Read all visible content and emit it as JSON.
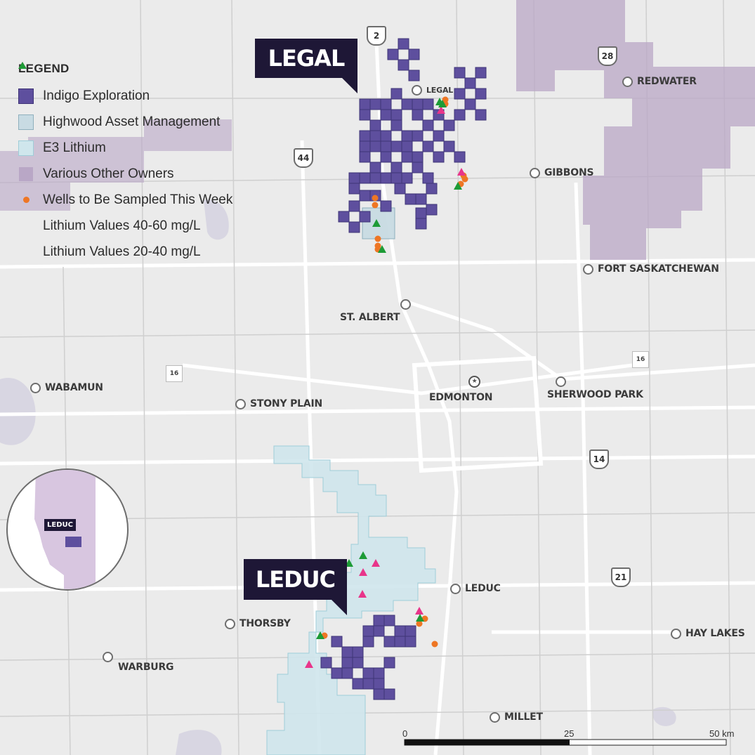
{
  "colors": {
    "indigo": "#5e4f9e",
    "highwood": "#c8dbe3",
    "e3": "#cfe6ec",
    "various": "#b9a7c6",
    "wells": "#ee7624",
    "lithium_40_60": "#e8358a",
    "lithium_20_40": "#1d9b36",
    "callout": "#1e1736"
  },
  "legend": {
    "title": "LEGEND",
    "items": [
      {
        "label": "Indigo Exploration",
        "symbol": "square-indigo"
      },
      {
        "label": "Highwood Asset Management",
        "symbol": "square-highwood"
      },
      {
        "label": "E3 Lithium",
        "symbol": "square-e3"
      },
      {
        "label": "Various Other Owners",
        "symbol": "square-various"
      },
      {
        "label": "Wells to Be Sampled This Week",
        "symbol": "circle-orange"
      },
      {
        "label": "Lithium Values 40-60 mg/L",
        "symbol": "triangle-pink"
      },
      {
        "label": "Lithium Values 20-40 mg/L",
        "symbol": "triangle-green"
      }
    ]
  },
  "callouts": {
    "legal": "LEGAL",
    "leduc": "LEDUC"
  },
  "towns": [
    {
      "name": "LEGAL",
      "key": "legal"
    },
    {
      "name": "REDWATER",
      "key": "redwater"
    },
    {
      "name": "GIBBONS",
      "key": "gibbons"
    },
    {
      "name": "FORT SASKATCHEWAN",
      "key": "fort"
    },
    {
      "name": "ST. ALBERT",
      "key": "stalbert"
    },
    {
      "name": "EDMONTON",
      "key": "edmonton"
    },
    {
      "name": "SHERWOOD PARK",
      "key": "sherwood"
    },
    {
      "name": "WABAMUN",
      "key": "wabamun"
    },
    {
      "name": "STONY PLAIN",
      "key": "stony"
    },
    {
      "name": "LEDUC",
      "key": "leduc"
    },
    {
      "name": "THORSBY",
      "key": "thorsby"
    },
    {
      "name": "WARBURG",
      "key": "warburg"
    },
    {
      "name": "HAY LAKES",
      "key": "haylakes"
    },
    {
      "name": "MILLET",
      "key": "millet"
    }
  ],
  "highways": {
    "h2": "2",
    "h28": "28",
    "h44": "44",
    "h14": "14",
    "h21": "21",
    "tch": "16"
  },
  "scale": {
    "ticks": [
      "0",
      "25",
      "50 km"
    ]
  },
  "inset": {
    "label": "LEDUC"
  }
}
